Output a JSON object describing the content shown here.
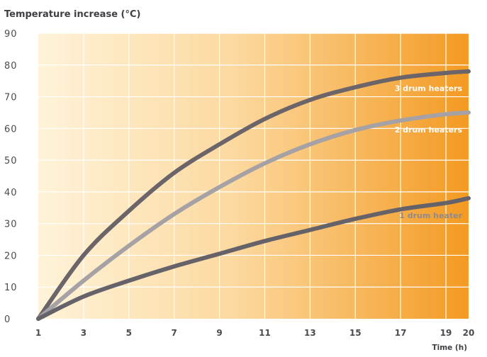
{
  "chart_data": {
    "type": "line",
    "title": "",
    "ylabel": "Temperature increase (°C)",
    "xlabel": "Time (h)",
    "xlim": [
      1,
      20
    ],
    "ylim": [
      0,
      90
    ],
    "x_ticks": [
      "1",
      "3",
      "5",
      "7",
      "9",
      "11",
      "13",
      "15",
      "17",
      "19",
      "20"
    ],
    "y_ticks": [
      "0",
      "10",
      "20",
      "30",
      "40",
      "50",
      "60",
      "70",
      "80",
      "90"
    ],
    "grid": true,
    "background": "gradient, light cream at left to orange at right",
    "colors": {
      "gradient_start": "#FEF3D9",
      "gradient_end": "#F39A22",
      "grid": "#FFFFFF",
      "series_dark": "#6B6569",
      "series_light": "#A5A1A4"
    },
    "series": [
      {
        "name": "3 drum heaters",
        "color": "#6B6569",
        "label_color": "#FFFFFF",
        "x": [
          1,
          3,
          5,
          7,
          9,
          11,
          13,
          15,
          17,
          19,
          20
        ],
        "y": [
          0,
          20,
          34,
          46,
          55,
          63,
          69,
          73,
          76,
          77.5,
          78
        ]
      },
      {
        "name": "2 drum heaters",
        "color": "#A5A1A4",
        "label_color": "#FFFFFF",
        "x": [
          1,
          3,
          5,
          7,
          9,
          11,
          13,
          15,
          17,
          19,
          20
        ],
        "y": [
          0,
          12,
          23,
          33,
          41.5,
          49,
          55,
          59.5,
          62.5,
          64.5,
          65
        ]
      },
      {
        "name": "1 drum heater",
        "color": "#66626A",
        "label_color": "#8E8A8E",
        "x": [
          1,
          3,
          5,
          7,
          9,
          11,
          13,
          15,
          17,
          19,
          20
        ],
        "y": [
          0,
          7,
          12,
          16.5,
          20.5,
          24.5,
          28,
          31.5,
          34.5,
          36.5,
          38
        ]
      }
    ]
  }
}
